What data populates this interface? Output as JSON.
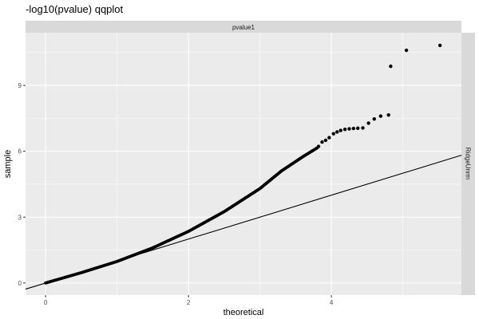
{
  "chart_data": {
    "type": "scatter",
    "title": "-log10(pvalue) qqplot",
    "xlabel": "theoretical",
    "ylabel": "sample",
    "facet_top_label": "pvalue1",
    "facet_right_label": "RidgeUnrm",
    "xlim": [
      -0.28,
      5.82
    ],
    "ylim": [
      -0.55,
      11.4
    ],
    "x_ticks": [
      0,
      2,
      4
    ],
    "y_ticks": [
      0,
      3,
      6,
      9
    ],
    "grid": true,
    "reference_line": {
      "slope": 1,
      "intercept": 0
    },
    "curve": [
      {
        "x": 0.0,
        "y": 0.0
      },
      {
        "x": 0.5,
        "y": 0.47
      },
      {
        "x": 1.0,
        "y": 0.98
      },
      {
        "x": 1.5,
        "y": 1.6
      },
      {
        "x": 2.0,
        "y": 2.35
      },
      {
        "x": 2.5,
        "y": 3.25
      },
      {
        "x": 3.0,
        "y": 4.3
      },
      {
        "x": 3.3,
        "y": 5.1
      },
      {
        "x": 3.6,
        "y": 5.75
      },
      {
        "x": 3.8,
        "y": 6.15
      }
    ],
    "tail_points": [
      {
        "x": 3.82,
        "y": 6.22
      },
      {
        "x": 3.87,
        "y": 6.42
      },
      {
        "x": 3.92,
        "y": 6.5
      },
      {
        "x": 3.97,
        "y": 6.62
      },
      {
        "x": 4.03,
        "y": 6.8
      },
      {
        "x": 4.08,
        "y": 6.88
      },
      {
        "x": 4.13,
        "y": 6.95
      },
      {
        "x": 4.19,
        "y": 7.0
      },
      {
        "x": 4.25,
        "y": 7.02
      },
      {
        "x": 4.31,
        "y": 7.04
      },
      {
        "x": 4.37,
        "y": 7.05
      },
      {
        "x": 4.44,
        "y": 7.06
      },
      {
        "x": 4.52,
        "y": 7.28
      },
      {
        "x": 4.6,
        "y": 7.47
      },
      {
        "x": 4.69,
        "y": 7.6
      },
      {
        "x": 4.8,
        "y": 7.65
      },
      {
        "x": 4.83,
        "y": 9.87
      },
      {
        "x": 5.05,
        "y": 10.6
      },
      {
        "x": 5.52,
        "y": 10.82
      }
    ],
    "colors": {
      "panel": "#ebebeb",
      "grid_major": "#ffffff",
      "strip": "#d9d9d9",
      "point": "#000000",
      "line": "#000000"
    }
  }
}
